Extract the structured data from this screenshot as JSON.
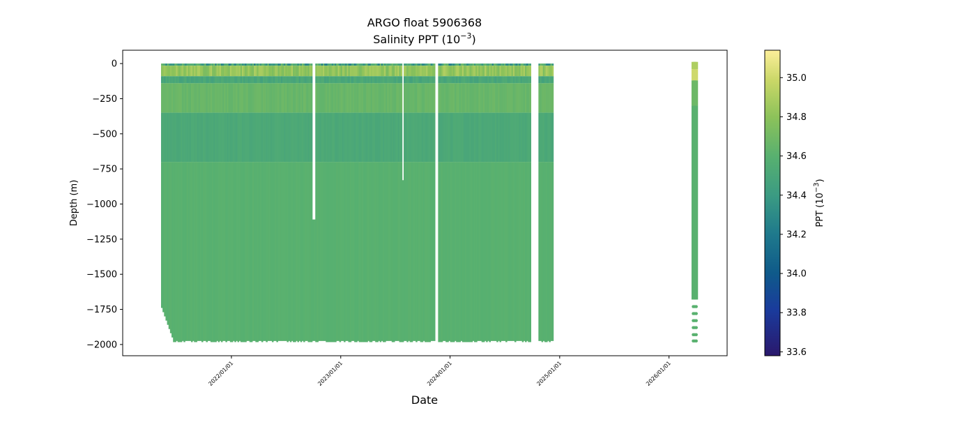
{
  "chart_data": {
    "type": "scatter",
    "title": "ARGO float 5906368",
    "subtitle": "Salinity PPT (10",
    "subtitle_exp": "−3",
    "subtitle_end": ")",
    "xlabel": "Date",
    "ylabel": "Depth (m)",
    "colorbar_label": "PPT (10",
    "colorbar_label_exp": "−3",
    "colorbar_label_end": ")",
    "colormap": "haline",
    "clim": [
      33.58,
      35.14
    ],
    "ylim": [
      -2080,
      95
    ],
    "xlim": [
      "2021-01-03",
      "2026-07-14"
    ],
    "x_ticks": [
      "2022/01/01",
      "2023/01/01",
      "2024/01/01",
      "2025/01/01",
      "2026/01/01"
    ],
    "y_ticks": [
      0,
      -250,
      -500,
      -750,
      -1000,
      -1250,
      -1500,
      -1750,
      -2000
    ],
    "colorbar_ticks": [
      33.6,
      33.8,
      34.0,
      34.2,
      34.4,
      34.6,
      34.8,
      35.0
    ],
    "grid": false,
    "profiles": {
      "first_date": "2021-05-11",
      "last_date": "2024-12-10",
      "interval_days": 5,
      "typical_max_depth": -1975,
      "surface_salinity": 34.45,
      "mixed_layer_salinity": 34.82,
      "intermediate_salinity": 34.52,
      "deep_salinity": 34.6
    },
    "data_gaps": [
      {
        "start": "2022-09-28",
        "end": "2022-10-04",
        "from_depth": -1110
      },
      {
        "start": "2023-07-24",
        "end": "2023-07-27",
        "from_depth": -830
      },
      {
        "start": "2023-11-12",
        "end": "2023-11-18",
        "from_depth": 0
      },
      {
        "start": "2024-09-24",
        "end": "2024-10-20",
        "from_depth": 0
      },
      {
        "start": "2024-12-11",
        "end": "2026-03-20",
        "from_depth": 0
      }
    ],
    "late_profiles": {
      "dates": [
        "2026-03-23",
        "2026-03-28",
        "2026-04-02"
      ],
      "continuous_to": -1680,
      "sparse_depths": [
        -1730,
        -1780,
        -1830,
        -1880,
        -1930,
        -1975
      ],
      "surface_salinity": 35.0,
      "deep_salinity": 34.6
    }
  }
}
